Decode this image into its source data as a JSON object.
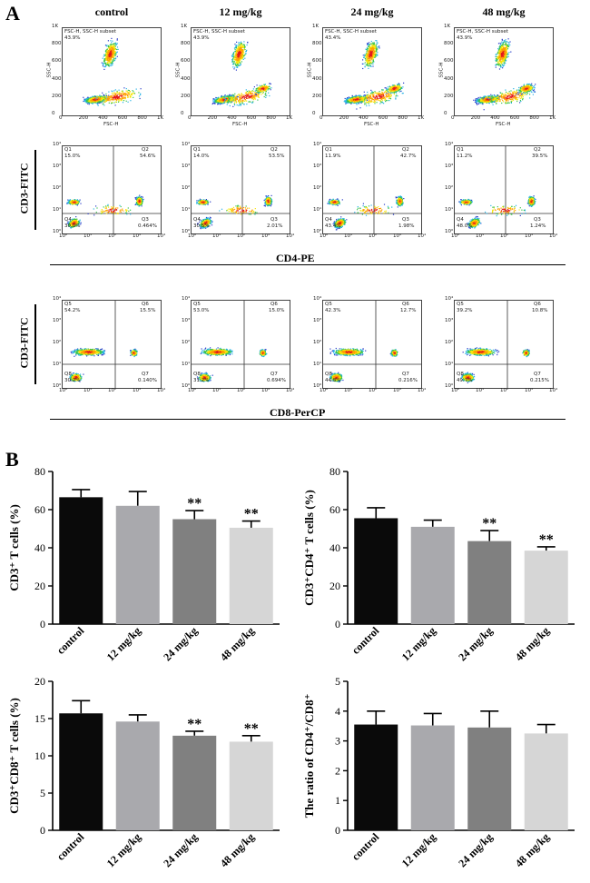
{
  "panel_a_label": "A",
  "panel_b_label": "B",
  "groups": [
    "control",
    "12 mg/kg",
    "24 mg/kg",
    "48 mg/kg"
  ],
  "scatter_row": {
    "subset_label": "FSC-H, SSC-H subset",
    "percents": [
      "43.9%",
      "43.9%",
      "43.4%",
      "43.9%"
    ],
    "xlabel": "FSC-H",
    "ylabel": "SSC-H",
    "x_ticks": [
      "0",
      "200",
      "400",
      "600",
      "800",
      "1K"
    ],
    "y_ticks": [
      "0",
      "200",
      "400",
      "600",
      "800",
      "1K"
    ]
  },
  "cd4_row": {
    "axis_x": "CD4-PE",
    "axis_y": "CD3-FITC",
    "quadrants": [
      {
        "q1": "15.0%",
        "q2": "54.6%",
        "q3": "0.464%",
        "q4": "30.0%"
      },
      {
        "q1": "14.0%",
        "q2": "53.5%",
        "q3": "2.01%",
        "q4": "30.5%"
      },
      {
        "q1": "11.9%",
        "q2": "42.7%",
        "q3": "1.98%",
        "q4": "43.4%"
      },
      {
        "q1": "11.2%",
        "q2": "39.5%",
        "q3": "1.24%",
        "q4": "48.0%"
      }
    ],
    "qnames": [
      "Q1",
      "Q2",
      "Q3",
      "Q4"
    ]
  },
  "cd8_row": {
    "axis_x": "CD8-PerCP",
    "axis_y": "CD3-FITC",
    "quadrants": [
      {
        "q5": "54.2%",
        "q6": "15.5%",
        "q7": "0.140%",
        "q8": "30.2%"
      },
      {
        "q5": "53.0%",
        "q6": "15.0%",
        "q7": "0.694%",
        "q8": "31.2%"
      },
      {
        "q5": "42.3%",
        "q6": "12.7%",
        "q7": "0.216%",
        "q8": "44.8%"
      },
      {
        "q5": "39.2%",
        "q6": "10.8%",
        "q7": "0.215%",
        "q8": "49.7%"
      }
    ],
    "qnames": [
      "Q5",
      "Q6",
      "Q7",
      "Q8"
    ]
  },
  "log_ticks": [
    "10⁰",
    "10¹",
    "10²",
    "10³",
    "10⁴"
  ],
  "colors": {
    "bar1": "#0a0a0a",
    "bar2": "#a9a9ad",
    "bar3": "#808080",
    "bar4": "#d6d6d6"
  },
  "chart_data": [
    {
      "type": "bar",
      "ylabel": "CD3⁺ T cells (%)",
      "categories": [
        "control",
        "12 mg/kg",
        "24 mg/kg",
        "48 mg/kg"
      ],
      "values": [
        66.5,
        62,
        55,
        50.5
      ],
      "errors": [
        4,
        7.5,
        4.5,
        3.5
      ],
      "significance": [
        "",
        "",
        "**",
        "**"
      ],
      "ylim": [
        0,
        80
      ],
      "yticks": [
        0,
        20,
        40,
        60,
        80
      ]
    },
    {
      "type": "bar",
      "ylabel": "CD3⁺CD4⁺ T cells (%)",
      "categories": [
        "control",
        "12 mg/kg",
        "24 mg/kg",
        "48 mg/kg"
      ],
      "values": [
        55.5,
        51,
        43.5,
        38.5
      ],
      "errors": [
        5.5,
        3.5,
        5.5,
        2
      ],
      "significance": [
        "",
        "",
        "**",
        "**"
      ],
      "ylim": [
        0,
        80
      ],
      "yticks": [
        0,
        20,
        40,
        60,
        80
      ]
    },
    {
      "type": "bar",
      "ylabel": "CD3⁺CD8⁺ T cells (%)",
      "categories": [
        "control",
        "12 mg/kg",
        "24 mg/kg",
        "48 mg/kg"
      ],
      "values": [
        15.7,
        14.6,
        12.7,
        11.9
      ],
      "errors": [
        1.7,
        0.9,
        0.6,
        0.8
      ],
      "significance": [
        "",
        "",
        "**",
        "**"
      ],
      "ylim": [
        0,
        20
      ],
      "yticks": [
        0,
        5,
        10,
        15,
        20
      ]
    },
    {
      "type": "bar",
      "ylabel": "The ratio of CD4⁺/CD8⁺",
      "categories": [
        "control",
        "12 mg/kg",
        "24 mg/kg",
        "48 mg/kg"
      ],
      "values": [
        3.55,
        3.52,
        3.45,
        3.25
      ],
      "errors": [
        0.45,
        0.4,
        0.55,
        0.3
      ],
      "significance": [
        "",
        "",
        "",
        ""
      ],
      "ylim": [
        0,
        5
      ],
      "yticks": [
        0,
        1,
        2,
        3,
        4,
        5
      ]
    }
  ]
}
